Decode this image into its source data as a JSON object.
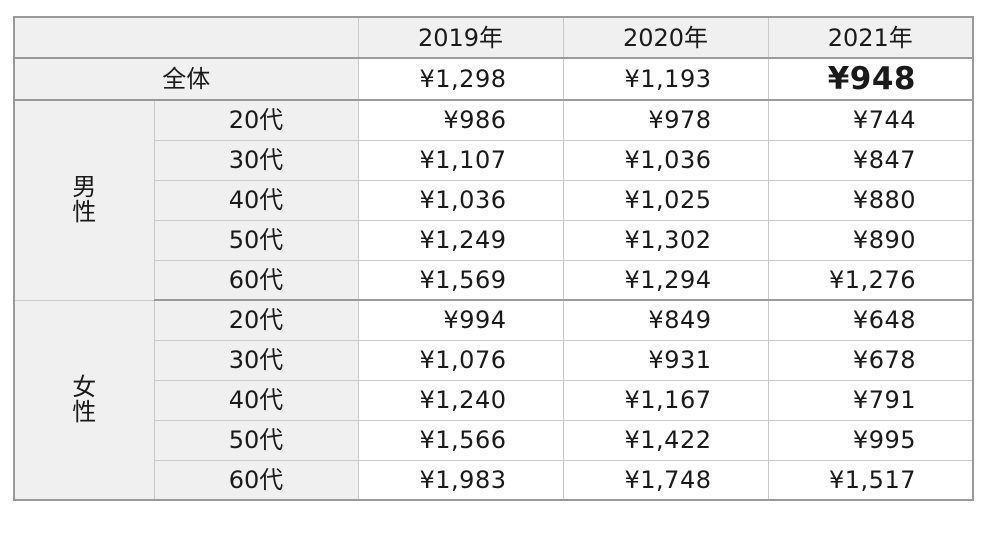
{
  "chart_data": {
    "type": "table",
    "years": [
      "2019年",
      "2020年",
      "2021年"
    ],
    "total": {
      "label": "全体",
      "values": [
        "¥1,298",
        "¥1,193",
        "¥948"
      ]
    },
    "groups": [
      {
        "label": "男性",
        "rows": [
          {
            "age": "20代",
            "values": [
              "¥986",
              "¥978",
              "¥744"
            ]
          },
          {
            "age": "30代",
            "values": [
              "¥1,107",
              "¥1,036",
              "¥847"
            ]
          },
          {
            "age": "40代",
            "values": [
              "¥1,036",
              "¥1,025",
              "¥880"
            ]
          },
          {
            "age": "50代",
            "values": [
              "¥1,249",
              "¥1,302",
              "¥890"
            ]
          },
          {
            "age": "60代",
            "values": [
              "¥1,569",
              "¥1,294",
              "¥1,276"
            ]
          }
        ]
      },
      {
        "label": "女性",
        "rows": [
          {
            "age": "20代",
            "values": [
              "¥994",
              "¥849",
              "¥648"
            ]
          },
          {
            "age": "30代",
            "values": [
              "¥1,076",
              "¥931",
              "¥678"
            ]
          },
          {
            "age": "40代",
            "values": [
              "¥1,240",
              "¥1,167",
              "¥791"
            ]
          },
          {
            "age": "50代",
            "values": [
              "¥1,566",
              "¥1,422",
              "¥995"
            ]
          },
          {
            "age": "60代",
            "values": [
              "¥1,983",
              "¥1,748",
              "¥1,517"
            ]
          }
        ]
      }
    ],
    "emphasis": {
      "total_2021": true
    },
    "colors": {
      "header_bg": "#f0f0f0",
      "border": "#c9c9c9",
      "thick_border": "#9a9a9a"
    }
  }
}
